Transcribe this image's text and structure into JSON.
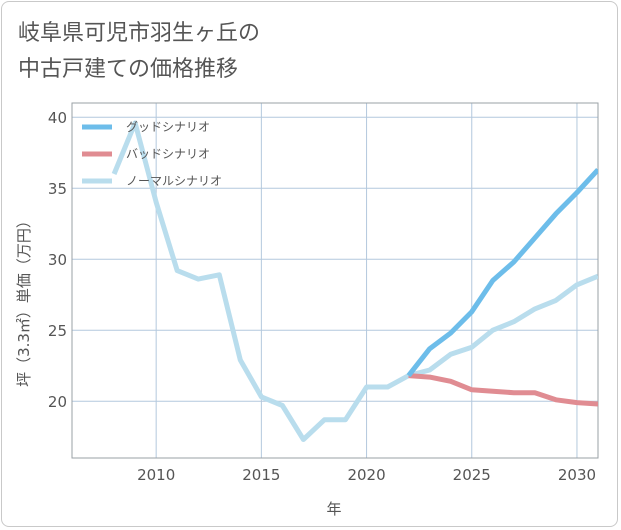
{
  "chart_data": {
    "type": "line",
    "title_lines": [
      "岐阜県可児市羽生ヶ丘の",
      "中古戸建ての価格推移"
    ],
    "xlabel": "年",
    "ylabel": "坪（3.3㎡）単価（万円）",
    "xlim": [
      2006,
      2031
    ],
    "ylim": [
      16,
      41
    ],
    "x_ticks": [
      2010,
      2015,
      2020,
      2025,
      2030
    ],
    "y_ticks": [
      20,
      25,
      30,
      35,
      40
    ],
    "grid": true,
    "legend_position": "top-left",
    "series": [
      {
        "name": "グッドシナリオ",
        "color": "#6dbdea",
        "x": [
          2022,
          2023,
          2024,
          2025,
          2026,
          2027,
          2028,
          2029,
          2030,
          2031
        ],
        "values": [
          21.8,
          23.7,
          24.8,
          26.3,
          28.5,
          29.8,
          31.5,
          33.2,
          34.7,
          36.3
        ]
      },
      {
        "name": "バッドシナリオ",
        "color": "#e08c92",
        "x": [
          2022,
          2023,
          2024,
          2025,
          2026,
          2027,
          2028,
          2029,
          2030,
          2031
        ],
        "values": [
          21.8,
          21.7,
          21.4,
          20.8,
          20.7,
          20.6,
          20.6,
          20.1,
          19.9,
          19.8
        ]
      },
      {
        "name": "ノーマルシナリオ",
        "color": "#b9dded",
        "x": [
          2008,
          2009,
          2010,
          2011,
          2012,
          2013,
          2014,
          2015,
          2016,
          2017,
          2018,
          2019,
          2020,
          2021,
          2022,
          2023,
          2024,
          2025,
          2026,
          2027,
          2028,
          2029,
          2030,
          2031
        ],
        "values": [
          36.0,
          39.6,
          34.0,
          29.2,
          28.6,
          28.9,
          22.9,
          20.3,
          19.7,
          17.3,
          18.7,
          18.7,
          21.0,
          21.0,
          21.8,
          22.2,
          23.3,
          23.8,
          25.0,
          25.6,
          26.5,
          27.1,
          28.2,
          28.8
        ]
      }
    ]
  }
}
